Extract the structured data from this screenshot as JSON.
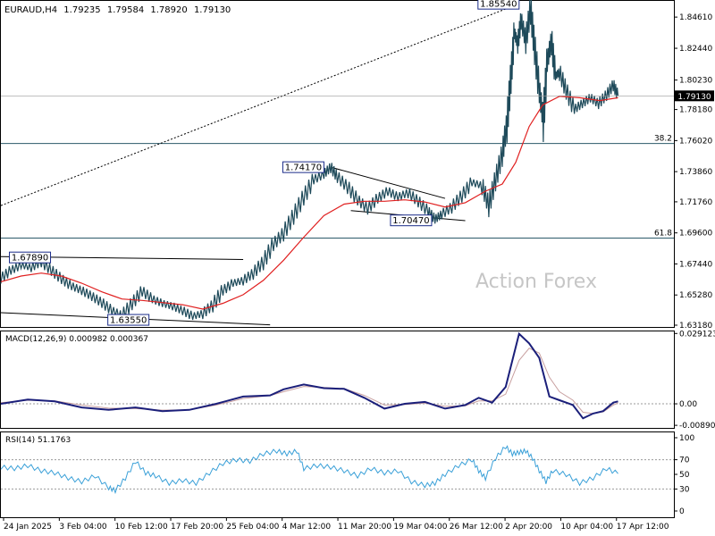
{
  "chart_data": {
    "type": "line",
    "price": {
      "symbol": "EURAUD,H4",
      "ohlc": {
        "open": "1.79235",
        "high": "1.79584",
        "low": "1.78920",
        "close": "1.79130"
      },
      "current_label": "1.79130",
      "current_value": 1.7913,
      "ylim": [
        1.6318,
        1.8555
      ],
      "y_ticks": [
        "1.84610",
        "1.82440",
        "1.80230",
        "1.78180",
        "1.76020",
        "1.73860",
        "1.71760",
        "1.69600",
        "1.67440",
        "1.65280",
        "1.63180"
      ],
      "levels": [
        {
          "name": "fib-38.2",
          "label": "38.2",
          "value": 1.7582
        },
        {
          "name": "fib-61.8",
          "label": "61.8",
          "value": 1.6924
        }
      ],
      "annotations": [
        {
          "label": "1.85540",
          "x": 0.77,
          "y": 1.8554
        },
        {
          "label": "1.74170",
          "x": 0.48,
          "y": 1.7417
        },
        {
          "label": "1.70470",
          "x": 0.64,
          "y": 1.7047
        },
        {
          "label": "1.67890",
          "x": 0.01,
          "y": 1.6789
        },
        {
          "label": "1.63550",
          "x": 0.22,
          "y": 1.6355
        }
      ],
      "trendlines": [
        {
          "name": "long-uptrend-line",
          "style": "dotted",
          "from": [
            0.0,
            1.715
          ],
          "to": [
            0.77,
            1.8554
          ]
        },
        {
          "name": "upper-channel-line-left",
          "style": "solid",
          "from": [
            0.0,
            1.6795
          ],
          "to": [
            0.36,
            1.6775
          ]
        },
        {
          "name": "lower-channel-line-left",
          "style": "solid",
          "from": [
            0.0,
            1.6405
          ],
          "to": [
            0.4,
            1.632
          ]
        },
        {
          "name": "triangle-upper-line",
          "style": "solid",
          "from": [
            0.49,
            1.7417
          ],
          "to": [
            0.66,
            1.72
          ]
        },
        {
          "name": "triangle-lower-line",
          "style": "solid",
          "from": [
            0.52,
            1.7115
          ],
          "to": [
            0.69,
            1.7045
          ]
        }
      ],
      "close_path": [
        [
          0.0,
          1.6645
        ],
        [
          0.015,
          1.67
        ],
        [
          0.03,
          1.6735
        ],
        [
          0.045,
          1.672
        ],
        [
          0.06,
          1.676
        ],
        [
          0.075,
          1.67
        ],
        [
          0.09,
          1.664
        ],
        [
          0.105,
          1.659
        ],
        [
          0.12,
          1.656
        ],
        [
          0.135,
          1.652
        ],
        [
          0.15,
          1.6475
        ],
        [
          0.165,
          1.642
        ],
        [
          0.18,
          1.6385
        ],
        [
          0.195,
          1.647
        ],
        [
          0.21,
          1.6555
        ],
        [
          0.225,
          1.65
        ],
        [
          0.24,
          1.647
        ],
        [
          0.255,
          1.645
        ],
        [
          0.27,
          1.642
        ],
        [
          0.285,
          1.638
        ],
        [
          0.3,
          1.64
        ],
        [
          0.315,
          1.646
        ],
        [
          0.33,
          1.656
        ],
        [
          0.345,
          1.661
        ],
        [
          0.36,
          1.663
        ],
        [
          0.375,
          1.668
        ],
        [
          0.39,
          1.676
        ],
        [
          0.405,
          1.688
        ],
        [
          0.42,
          1.696
        ],
        [
          0.435,
          1.708
        ],
        [
          0.45,
          1.721
        ],
        [
          0.465,
          1.733
        ],
        [
          0.48,
          1.737
        ],
        [
          0.49,
          1.7417
        ],
        [
          0.5,
          1.735
        ],
        [
          0.515,
          1.728
        ],
        [
          0.53,
          1.719
        ],
        [
          0.545,
          1.713
        ],
        [
          0.56,
          1.72
        ],
        [
          0.575,
          1.725
        ],
        [
          0.59,
          1.721
        ],
        [
          0.605,
          1.724
        ],
        [
          0.62,
          1.718
        ],
        [
          0.635,
          1.711
        ],
        [
          0.645,
          1.7055
        ],
        [
          0.655,
          1.709
        ],
        [
          0.67,
          1.714
        ],
        [
          0.685,
          1.722
        ],
        [
          0.7,
          1.731
        ],
        [
          0.715,
          1.729
        ],
        [
          0.725,
          1.715
        ],
        [
          0.735,
          1.733
        ],
        [
          0.745,
          1.751
        ],
        [
          0.752,
          1.772
        ],
        [
          0.758,
          1.805
        ],
        [
          0.763,
          1.835
        ],
        [
          0.768,
          1.828
        ],
        [
          0.773,
          1.844
        ],
        [
          0.78,
          1.83
        ],
        [
          0.787,
          1.852
        ],
        [
          0.793,
          1.825
        ],
        [
          0.8,
          1.795
        ],
        [
          0.806,
          1.775
        ],
        [
          0.812,
          1.815
        ],
        [
          0.818,
          1.83
        ],
        [
          0.824,
          1.805
        ],
        [
          0.83,
          1.808
        ],
        [
          0.84,
          1.795
        ],
        [
          0.852,
          1.782
        ],
        [
          0.864,
          1.786
        ],
        [
          0.876,
          1.79
        ],
        [
          0.888,
          1.786
        ],
        [
          0.9,
          1.792
        ],
        [
          0.91,
          1.799
        ],
        [
          0.917,
          1.7913
        ]
      ],
      "ma_path": [
        [
          0.0,
          1.662
        ],
        [
          0.03,
          1.666
        ],
        [
          0.06,
          1.668
        ],
        [
          0.09,
          1.666
        ],
        [
          0.12,
          1.661
        ],
        [
          0.15,
          1.655
        ],
        [
          0.18,
          1.65
        ],
        [
          0.21,
          1.649
        ],
        [
          0.24,
          1.6475
        ],
        [
          0.27,
          1.646
        ],
        [
          0.3,
          1.643
        ],
        [
          0.33,
          1.647
        ],
        [
          0.36,
          1.653
        ],
        [
          0.39,
          1.663
        ],
        [
          0.42,
          1.677
        ],
        [
          0.45,
          1.693
        ],
        [
          0.48,
          1.708
        ],
        [
          0.51,
          1.716
        ],
        [
          0.54,
          1.718
        ],
        [
          0.57,
          1.718
        ],
        [
          0.6,
          1.719
        ],
        [
          0.63,
          1.7175
        ],
        [
          0.66,
          1.714
        ],
        [
          0.69,
          1.717
        ],
        [
          0.72,
          1.725
        ],
        [
          0.745,
          1.73
        ],
        [
          0.765,
          1.745
        ],
        [
          0.785,
          1.77
        ],
        [
          0.805,
          1.785
        ],
        [
          0.83,
          1.791
        ],
        [
          0.86,
          1.79
        ],
        [
          0.89,
          1.788
        ],
        [
          0.917,
          1.79
        ]
      ]
    },
    "macd": {
      "label": "MACD(12,26,9) 0.000982 0.000367",
      "ylim": [
        -0.0096,
        0.0296
      ],
      "y_ticks": [
        "0.029123",
        "0.00",
        "-0.008901"
      ],
      "current_labels": [
        "0.000982",
        "0.000367"
      ],
      "macd_path": [
        [
          0.0,
          0.0
        ],
        [
          0.04,
          0.0018
        ],
        [
          0.08,
          0.001
        ],
        [
          0.12,
          -0.0015
        ],
        [
          0.16,
          -0.0025
        ],
        [
          0.2,
          -0.0015
        ],
        [
          0.24,
          -0.003
        ],
        [
          0.28,
          -0.0025
        ],
        [
          0.32,
          0.0
        ],
        [
          0.36,
          0.003
        ],
        [
          0.4,
          0.0035
        ],
        [
          0.42,
          0.006
        ],
        [
          0.45,
          0.008
        ],
        [
          0.48,
          0.0065
        ],
        [
          0.51,
          0.0062
        ],
        [
          0.54,
          0.0025
        ],
        [
          0.57,
          -0.002
        ],
        [
          0.6,
          0.0
        ],
        [
          0.63,
          0.0008
        ],
        [
          0.66,
          -0.002
        ],
        [
          0.69,
          -0.0005
        ],
        [
          0.71,
          0.0025
        ],
        [
          0.73,
          0.0005
        ],
        [
          0.75,
          0.007
        ],
        [
          0.77,
          0.029
        ],
        [
          0.785,
          0.025
        ],
        [
          0.8,
          0.019
        ],
        [
          0.815,
          0.003
        ],
        [
          0.83,
          0.0015
        ],
        [
          0.85,
          -0.0005
        ],
        [
          0.865,
          -0.006
        ],
        [
          0.88,
          -0.004
        ],
        [
          0.895,
          -0.003
        ],
        [
          0.91,
          0.0005
        ],
        [
          0.917,
          0.001
        ]
      ],
      "signal_path": [
        [
          0.0,
          0.0005
        ],
        [
          0.04,
          0.0015
        ],
        [
          0.08,
          0.0012
        ],
        [
          0.12,
          -0.0005
        ],
        [
          0.16,
          -0.0018
        ],
        [
          0.2,
          -0.002
        ],
        [
          0.24,
          -0.0026
        ],
        [
          0.28,
          -0.0025
        ],
        [
          0.32,
          -0.0005
        ],
        [
          0.36,
          0.0022
        ],
        [
          0.4,
          0.0034
        ],
        [
          0.42,
          0.005
        ],
        [
          0.45,
          0.0072
        ],
        [
          0.48,
          0.0068
        ],
        [
          0.51,
          0.0063
        ],
        [
          0.54,
          0.0035
        ],
        [
          0.57,
          -0.0005
        ],
        [
          0.6,
          -0.0003
        ],
        [
          0.63,
          0.0003
        ],
        [
          0.66,
          -0.001
        ],
        [
          0.69,
          -0.0008
        ],
        [
          0.71,
          0.0012
        ],
        [
          0.73,
          0.0012
        ],
        [
          0.75,
          0.004
        ],
        [
          0.77,
          0.018
        ],
        [
          0.785,
          0.023
        ],
        [
          0.8,
          0.021
        ],
        [
          0.815,
          0.011
        ],
        [
          0.83,
          0.005
        ],
        [
          0.85,
          0.0015
        ],
        [
          0.865,
          -0.0035
        ],
        [
          0.88,
          -0.004
        ],
        [
          0.895,
          -0.0033
        ],
        [
          0.91,
          -0.0005
        ],
        [
          0.917,
          0.0004
        ]
      ],
      "grid": [
        0.0
      ]
    },
    "rsi": {
      "label": "RSI(14) 51.1763",
      "ylim": [
        0,
        100
      ],
      "y_ticks": [
        "100",
        "70",
        "50",
        "30",
        "0"
      ],
      "grid": [
        70,
        30
      ],
      "rsi_path": [
        [
          0.0,
          60
        ],
        [
          0.02,
          58
        ],
        [
          0.04,
          62
        ],
        [
          0.06,
          55
        ],
        [
          0.08,
          52
        ],
        [
          0.1,
          45
        ],
        [
          0.12,
          40
        ],
        [
          0.14,
          48
        ],
        [
          0.16,
          32
        ],
        [
          0.17,
          28
        ],
        [
          0.185,
          45
        ],
        [
          0.2,
          68
        ],
        [
          0.215,
          52
        ],
        [
          0.23,
          48
        ],
        [
          0.25,
          38
        ],
        [
          0.27,
          42
        ],
        [
          0.29,
          38
        ],
        [
          0.31,
          52
        ],
        [
          0.33,
          65
        ],
        [
          0.35,
          70
        ],
        [
          0.37,
          68
        ],
        [
          0.39,
          78
        ],
        [
          0.41,
          82
        ],
        [
          0.425,
          78
        ],
        [
          0.44,
          82
        ],
        [
          0.45,
          58
        ],
        [
          0.47,
          62
        ],
        [
          0.49,
          60
        ],
        [
          0.51,
          55
        ],
        [
          0.53,
          48
        ],
        [
          0.55,
          58
        ],
        [
          0.57,
          52
        ],
        [
          0.59,
          55
        ],
        [
          0.61,
          40
        ],
        [
          0.63,
          35
        ],
        [
          0.645,
          38
        ],
        [
          0.66,
          50
        ],
        [
          0.68,
          62
        ],
        [
          0.7,
          70
        ],
        [
          0.71,
          55
        ],
        [
          0.72,
          45
        ],
        [
          0.735,
          72
        ],
        [
          0.75,
          88
        ],
        [
          0.76,
          78
        ],
        [
          0.77,
          80
        ],
        [
          0.78,
          82
        ],
        [
          0.79,
          72
        ],
        [
          0.8,
          55
        ],
        [
          0.81,
          40
        ],
        [
          0.82,
          55
        ],
        [
          0.84,
          50
        ],
        [
          0.86,
          38
        ],
        [
          0.88,
          45
        ],
        [
          0.9,
          58
        ],
        [
          0.917,
          51
        ]
      ]
    },
    "x_tick_labels": [
      "24 Jan 2025",
      "3 Feb 04:00",
      "10 Feb 12:00",
      "17 Feb 20:00",
      "25 Feb 04:00",
      "4 Mar 12:00",
      "11 Mar 20:00",
      "19 Mar 04:00",
      "26 Mar 12:00",
      "2 Apr 20:00",
      "10 Apr 04:00",
      "17 Apr 12:00"
    ],
    "watermark": "Action Forex",
    "colors": {
      "price": "#1e4a5a",
      "moving_average": "#e02020",
      "macd": "#1b1f7a",
      "signal": "#c8a0a0",
      "rsi": "#3aa0d8",
      "trendline": "#000000",
      "level_line": "#2c5a6a",
      "grid": "#9a9a9a",
      "label_box": "#1b2c8a"
    }
  }
}
